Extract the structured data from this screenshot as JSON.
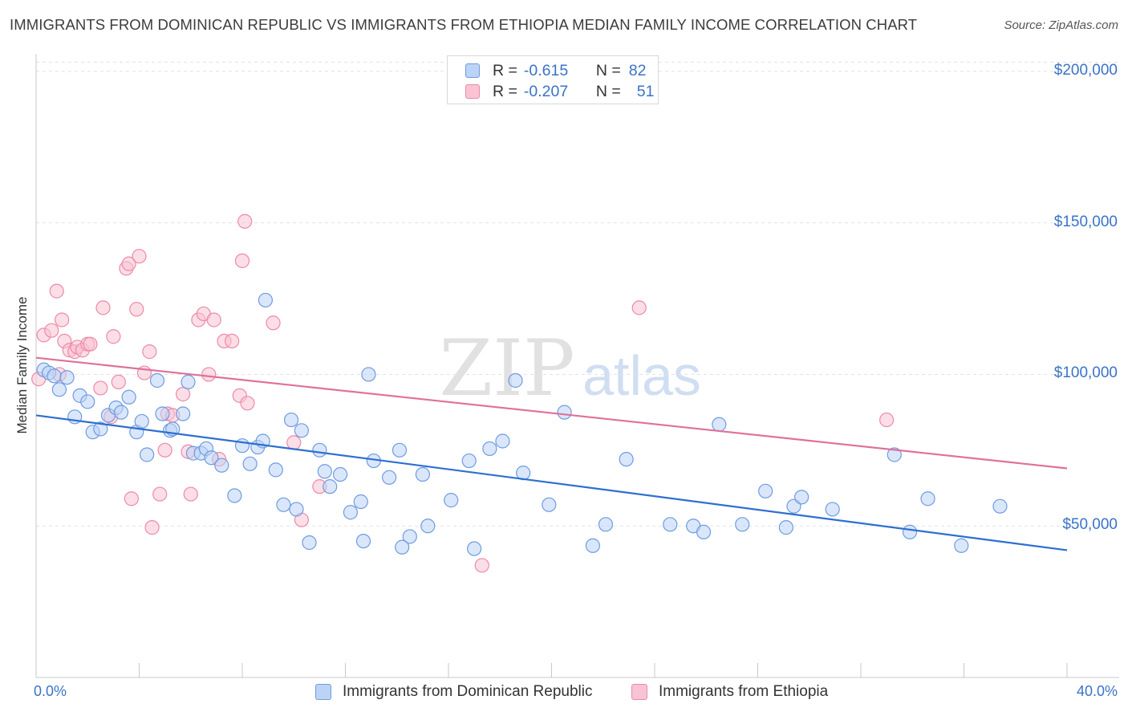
{
  "title": "IMMIGRANTS FROM DOMINICAN REPUBLIC VS IMMIGRANTS FROM ETHIOPIA MEDIAN FAMILY INCOME CORRELATION CHART",
  "source": "Source: ZipAtlas.com",
  "watermark": {
    "zip": "ZIP",
    "atlas": "atlas"
  },
  "legend": {
    "series": [
      {
        "r_label": "R =",
        "r_value": "-0.615",
        "n_label": "N =",
        "n_value": "82"
      },
      {
        "r_label": "R =",
        "r_value": "-0.207",
        "n_label": "N =",
        "n_value": "51"
      }
    ]
  },
  "colors": {
    "blue_fill": "#bcd3f5",
    "blue_stroke": "#6f9be0",
    "blue_line": "#2d6fd0",
    "pink_fill": "#f9c3d3",
    "pink_stroke": "#eb8aa8",
    "pink_line": "#e0709a",
    "axis_label": "#3a73c8",
    "grid": "#e2e2e2"
  },
  "chart_data": {
    "type": "scatter",
    "ylabel": "Median Family Income",
    "xlim": [
      0,
      40
    ],
    "ylim": [
      0,
      205000
    ],
    "x_tick_labels": [
      "0.0%",
      "40.0%"
    ],
    "y_ticks": [
      50000,
      100000,
      150000,
      200000
    ],
    "y_tick_labels": [
      "$50,000",
      "$100,000",
      "$150,000",
      "$200,000"
    ],
    "grid": "horizontal dashed",
    "legend_position": "bottom",
    "series": [
      {
        "name": "Immigrants from Dominican Republic",
        "color": "blue",
        "trend": [
          [
            0,
            86500
          ],
          [
            40,
            42000
          ]
        ],
        "points": [
          [
            0.3,
            101500
          ],
          [
            0.5,
            100500
          ],
          [
            0.7,
            99500
          ],
          [
            0.9,
            95000
          ],
          [
            1.2,
            99000
          ],
          [
            1.5,
            86000
          ],
          [
            1.7,
            93000
          ],
          [
            2.0,
            91000
          ],
          [
            2.2,
            81000
          ],
          [
            2.5,
            82000
          ],
          [
            2.8,
            86500
          ],
          [
            3.1,
            89000
          ],
          [
            3.3,
            87500
          ],
          [
            3.6,
            92500
          ],
          [
            3.9,
            81000
          ],
          [
            4.1,
            84500
          ],
          [
            4.3,
            73500
          ],
          [
            4.7,
            98000
          ],
          [
            4.9,
            87000
          ],
          [
            5.2,
            81500
          ],
          [
            5.3,
            82000
          ],
          [
            5.7,
            87000
          ],
          [
            5.9,
            97500
          ],
          [
            6.1,
            74000
          ],
          [
            6.4,
            74000
          ],
          [
            6.6,
            75500
          ],
          [
            6.8,
            72500
          ],
          [
            7.2,
            70000
          ],
          [
            7.7,
            60000
          ],
          [
            8.0,
            76500
          ],
          [
            8.3,
            70500
          ],
          [
            8.6,
            76000
          ],
          [
            8.8,
            78000
          ],
          [
            8.9,
            124500
          ],
          [
            9.3,
            68500
          ],
          [
            9.6,
            57000
          ],
          [
            9.9,
            85000
          ],
          [
            10.1,
            55500
          ],
          [
            10.3,
            81500
          ],
          [
            10.6,
            44500
          ],
          [
            11.0,
            75000
          ],
          [
            11.2,
            68000
          ],
          [
            11.4,
            63000
          ],
          [
            11.8,
            67000
          ],
          [
            12.2,
            54500
          ],
          [
            12.6,
            58000
          ],
          [
            12.7,
            45000
          ],
          [
            12.9,
            100000
          ],
          [
            13.1,
            71500
          ],
          [
            13.7,
            66000
          ],
          [
            14.1,
            75000
          ],
          [
            14.5,
            46500
          ],
          [
            14.2,
            43000
          ],
          [
            15.0,
            67000
          ],
          [
            15.2,
            50000
          ],
          [
            16.1,
            58500
          ],
          [
            16.8,
            71500
          ],
          [
            17.0,
            42500
          ],
          [
            17.6,
            75500
          ],
          [
            18.1,
            78000
          ],
          [
            18.9,
            67500
          ],
          [
            18.6,
            98000
          ],
          [
            19.9,
            57000
          ],
          [
            20.5,
            87500
          ],
          [
            21.6,
            43500
          ],
          [
            22.1,
            50500
          ],
          [
            22.9,
            72000
          ],
          [
            24.6,
            50500
          ],
          [
            25.5,
            50000
          ],
          [
            25.9,
            48000
          ],
          [
            26.5,
            83500
          ],
          [
            27.4,
            50500
          ],
          [
            28.3,
            61500
          ],
          [
            29.1,
            49500
          ],
          [
            29.4,
            56500
          ],
          [
            29.7,
            59500
          ],
          [
            30.9,
            55500
          ],
          [
            33.3,
            73500
          ],
          [
            33.9,
            48000
          ],
          [
            34.6,
            59000
          ],
          [
            35.9,
            43500
          ],
          [
            37.4,
            56500
          ]
        ]
      },
      {
        "name": "Immigrants from Ethiopia",
        "color": "pink",
        "trend": [
          [
            0,
            105500
          ],
          [
            40,
            69000
          ]
        ],
        "points": [
          [
            0.1,
            98500
          ],
          [
            0.3,
            113000
          ],
          [
            0.6,
            114500
          ],
          [
            0.8,
            127500
          ],
          [
            0.9,
            100000
          ],
          [
            1.0,
            118000
          ],
          [
            1.1,
            111000
          ],
          [
            1.3,
            108000
          ],
          [
            1.5,
            107500
          ],
          [
            1.6,
            109000
          ],
          [
            1.8,
            108000
          ],
          [
            2.0,
            110000
          ],
          [
            2.1,
            110000
          ],
          [
            2.5,
            95500
          ],
          [
            2.6,
            122000
          ],
          [
            2.9,
            86000
          ],
          [
            3.0,
            112500
          ],
          [
            3.2,
            97500
          ],
          [
            3.5,
            135000
          ],
          [
            3.6,
            136500
          ],
          [
            3.7,
            59000
          ],
          [
            3.9,
            121500
          ],
          [
            4.0,
            139000
          ],
          [
            4.2,
            100500
          ],
          [
            4.4,
            107500
          ],
          [
            4.5,
            49500
          ],
          [
            4.8,
            60500
          ],
          [
            5.1,
            87000
          ],
          [
            5.0,
            75000
          ],
          [
            5.3,
            86500
          ],
          [
            5.7,
            93500
          ],
          [
            5.9,
            74500
          ],
          [
            6.0,
            60500
          ],
          [
            6.3,
            118000
          ],
          [
            6.5,
            120000
          ],
          [
            6.7,
            100000
          ],
          [
            6.9,
            118000
          ],
          [
            7.1,
            72000
          ],
          [
            7.3,
            111000
          ],
          [
            7.6,
            111000
          ],
          [
            7.9,
            93000
          ],
          [
            8.0,
            137500
          ],
          [
            8.1,
            150500
          ],
          [
            8.2,
            90500
          ],
          [
            9.2,
            117000
          ],
          [
            10.0,
            77500
          ],
          [
            10.3,
            52000
          ],
          [
            11.0,
            63000
          ],
          [
            17.3,
            37000
          ],
          [
            23.4,
            122000
          ],
          [
            33.0,
            85000
          ]
        ]
      }
    ]
  },
  "bottom_legend": [
    {
      "label": "Immigrants from Dominican Republic"
    },
    {
      "label": "Immigrants from Ethiopia"
    }
  ]
}
